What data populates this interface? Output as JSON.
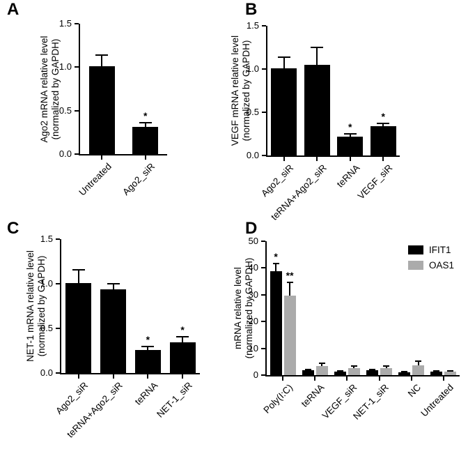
{
  "figure": {
    "background": "#ffffff",
    "accent_black": "#000000",
    "accent_gray": "#ABABAB",
    "significance_marks": {
      "single": "*",
      "double": "**"
    }
  },
  "chart_data": [
    {
      "id": "A",
      "type": "bar",
      "panel_label": "A",
      "ylabel_lines": [
        "Ago2 mRNA relative level",
        "(normalized by GAPDH)"
      ],
      "ymin": 0,
      "ymax": 1.5,
      "ytick_labels": [
        "0.0",
        "0.5",
        "1.0",
        "1.5"
      ],
      "grid": false,
      "legend": null,
      "categories": [
        "Untreated",
        "Ago2_siR"
      ],
      "series": [
        {
          "name": "",
          "color": "#000000",
          "values": [
            1.01,
            0.31
          ],
          "errors_plus": [
            0.13,
            0.05
          ],
          "significance": [
            "",
            "*"
          ]
        }
      ]
    },
    {
      "id": "B",
      "type": "bar",
      "panel_label": "B",
      "ylabel_lines": [
        "VEGF mRNA relative level",
        "(normalized by GAPDH)"
      ],
      "ymin": 0,
      "ymax": 1.5,
      "ytick_labels": [
        "0.0",
        "0.5",
        "1.0",
        "1.5"
      ],
      "grid": false,
      "legend": null,
      "categories": [
        "Ago2_siR",
        "teRNA+Ago2_siR",
        "teRNA",
        "VEGF_siR"
      ],
      "series": [
        {
          "name": "",
          "color": "#000000",
          "values": [
            1.01,
            1.05,
            0.22,
            0.34
          ],
          "errors_plus": [
            0.13,
            0.2,
            0.03,
            0.03
          ],
          "significance": [
            "",
            "",
            "*",
            "*"
          ]
        }
      ]
    },
    {
      "id": "C",
      "type": "bar",
      "panel_label": "C",
      "ylabel_lines": [
        "NET-1 mRNA relative level",
        "(normalized by GAPDH)"
      ],
      "ymin": 0,
      "ymax": 1.5,
      "ytick_labels": [
        "0.0",
        "0.5",
        "1.0",
        "1.5"
      ],
      "grid": false,
      "legend": null,
      "categories": [
        "Ago2_siR",
        "teRNA+Ago2_siR",
        "teRNA",
        "NET-1_siR"
      ],
      "series": [
        {
          "name": "",
          "color": "#000000",
          "values": [
            1.01,
            0.94,
            0.26,
            0.34
          ],
          "errors_plus": [
            0.15,
            0.06,
            0.04,
            0.07
          ],
          "significance": [
            "",
            "",
            "*",
            "*"
          ]
        }
      ]
    },
    {
      "id": "D",
      "type": "bar",
      "panel_label": "D",
      "ylabel_lines": [
        "mRNA relative level",
        "(normalized by GAPDH)"
      ],
      "ymin": 0,
      "ymax": 50,
      "ytick_labels": [
        "0",
        "10",
        "20",
        "30",
        "40",
        "50"
      ],
      "grid": false,
      "legend": {
        "position": "top-right",
        "items": [
          {
            "label": "IFIT1",
            "color": "#000000"
          },
          {
            "label": "OAS1",
            "color": "#ABABAB"
          }
        ]
      },
      "categories": [
        "Poly(I:C)",
        "teRNA",
        "VEGF_siR",
        "NET-1_siR",
        "NC",
        "Untreated"
      ],
      "series": [
        {
          "name": "IFIT1",
          "color": "#000000",
          "values": [
            38.8,
            1.8,
            1.3,
            1.7,
            1.0,
            1.3
          ],
          "errors_plus": [
            2.8,
            0.4,
            0.2,
            0.4,
            0.2,
            0.3
          ],
          "significance": [
            "*",
            "",
            "",
            "",
            "",
            ""
          ]
        },
        {
          "name": "OAS1",
          "color": "#ABABAB",
          "values": [
            29.8,
            3.4,
            2.6,
            2.7,
            3.7,
            1.2
          ],
          "errors_plus": [
            4.8,
            0.9,
            0.8,
            0.8,
            1.4,
            0.3
          ],
          "significance": [
            "**",
            "",
            "",
            "",
            "",
            ""
          ]
        }
      ]
    }
  ]
}
